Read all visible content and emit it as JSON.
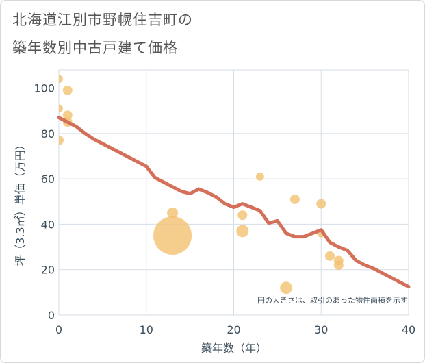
{
  "title_lines": [
    "北海道江別市野幌住吉町の",
    "築年数別中古戸建て価格"
  ],
  "chart_data": {
    "type": "scatter",
    "xlabel": "築年数（年）",
    "ylabel": "坪（3.3㎡）単価（万円）",
    "xlim": [
      0,
      40
    ],
    "ylim": [
      0,
      108
    ],
    "xticks": [
      0,
      10,
      20,
      30,
      40
    ],
    "yticks": [
      0,
      20,
      40,
      60,
      80,
      100
    ],
    "grid": true,
    "note": "円の大きさは、取引のあった物件面積を示す",
    "colors": {
      "bubble": "#f2c06e",
      "line": "#d4705a",
      "grid": "#d5dde6",
      "text": "#3d4f5c"
    },
    "bubbles": [
      {
        "x": 0,
        "y": 104,
        "r": 6
      },
      {
        "x": 0,
        "y": 91,
        "r": 6
      },
      {
        "x": 0,
        "y": 77,
        "r": 7
      },
      {
        "x": 1,
        "y": 99,
        "r": 7
      },
      {
        "x": 1,
        "y": 88,
        "r": 7
      },
      {
        "x": 1,
        "y": 85,
        "r": 7
      },
      {
        "x": 13,
        "y": 45,
        "r": 8
      },
      {
        "x": 13,
        "y": 35,
        "r": 28
      },
      {
        "x": 21,
        "y": 44,
        "r": 7
      },
      {
        "x": 21,
        "y": 37,
        "r": 9
      },
      {
        "x": 23,
        "y": 61,
        "r": 6
      },
      {
        "x": 26,
        "y": 12,
        "r": 9
      },
      {
        "x": 27,
        "y": 51,
        "r": 7
      },
      {
        "x": 30,
        "y": 49,
        "r": 7
      },
      {
        "x": 30,
        "y": 36,
        "r": 6
      },
      {
        "x": 31,
        "y": 26,
        "r": 7
      },
      {
        "x": 32,
        "y": 24,
        "r": 7
      },
      {
        "x": 32,
        "y": 22,
        "r": 7
      }
    ],
    "trend": {
      "x": [
        0,
        1,
        2,
        3,
        4,
        5,
        6,
        7,
        8,
        9,
        10,
        11,
        12,
        13,
        14,
        15,
        16,
        17,
        18,
        19,
        20,
        21,
        22,
        23,
        24,
        25,
        26,
        27,
        28,
        29,
        30,
        31,
        32,
        33,
        34,
        35,
        36,
        37,
        38,
        39,
        40
      ],
      "y": [
        87,
        85,
        83,
        80,
        77.5,
        75.5,
        73.5,
        71.5,
        69.5,
        67.5,
        65.5,
        60.5,
        58.5,
        56.5,
        54.5,
        53.5,
        55.5,
        54,
        52,
        49,
        47.5,
        49,
        47.5,
        46,
        40.5,
        41.5,
        36,
        34.5,
        34.5,
        36,
        37.5,
        32,
        30,
        28.5,
        24,
        22,
        20.5,
        18.5,
        16.5,
        14.5,
        12.5
      ]
    }
  }
}
